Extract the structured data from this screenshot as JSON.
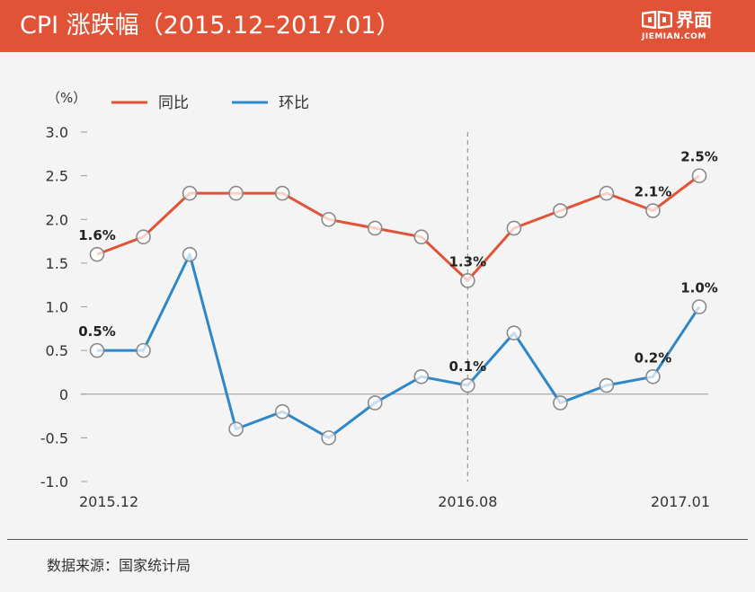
{
  "header": {
    "title": "CPI 涨跌幅（2015.12–2017.01）",
    "brand_name": "界面",
    "brand_domain": "JIEMIAN.COM"
  },
  "chart_data": {
    "type": "line",
    "ylabel": "（%）",
    "ylim": [
      -1.0,
      3.0
    ],
    "yticks": [
      "3.0",
      "2.5",
      "2.0",
      "1.5",
      "1.0",
      "0.5",
      "0",
      "-0.5",
      "-1.0"
    ],
    "ytick_values": [
      3.0,
      2.5,
      2.0,
      1.5,
      1.0,
      0.5,
      0,
      -0.5,
      -1.0
    ],
    "x": [
      "2015.12",
      "2016.01",
      "2016.02",
      "2016.03",
      "2016.04",
      "2016.05",
      "2016.06",
      "2016.07",
      "2016.08",
      "2016.09",
      "2016.10",
      "2016.11",
      "2016.12",
      "2017.01"
    ],
    "xticks": [
      "2015.12",
      "2016.08",
      "2017.01"
    ],
    "reference_line": "2016.08",
    "series": [
      {
        "name": "同比",
        "color": "#e05336",
        "values": [
          1.6,
          1.8,
          2.3,
          2.3,
          2.3,
          2.0,
          1.9,
          1.8,
          1.3,
          1.9,
          2.1,
          2.3,
          2.1,
          2.5
        ],
        "data_labels": [
          {
            "index": 0,
            "text": "1.6%"
          },
          {
            "index": 8,
            "text": "1.3%"
          },
          {
            "index": 12,
            "text": "2.1%"
          },
          {
            "index": 13,
            "text": "2.5%"
          }
        ]
      },
      {
        "name": "环比",
        "color": "#2e87c8",
        "values": [
          0.5,
          0.5,
          1.6,
          -0.4,
          -0.2,
          -0.5,
          -0.1,
          0.2,
          0.1,
          0.7,
          -0.1,
          0.1,
          0.2,
          1.0
        ],
        "data_labels": [
          {
            "index": 0,
            "text": "0.5%"
          },
          {
            "index": 8,
            "text": "0.1%"
          },
          {
            "index": 12,
            "text": "0.2%"
          },
          {
            "index": 13,
            "text": "1.0%"
          }
        ]
      }
    ]
  },
  "footer": {
    "source": "数据来源：国家统计局"
  }
}
